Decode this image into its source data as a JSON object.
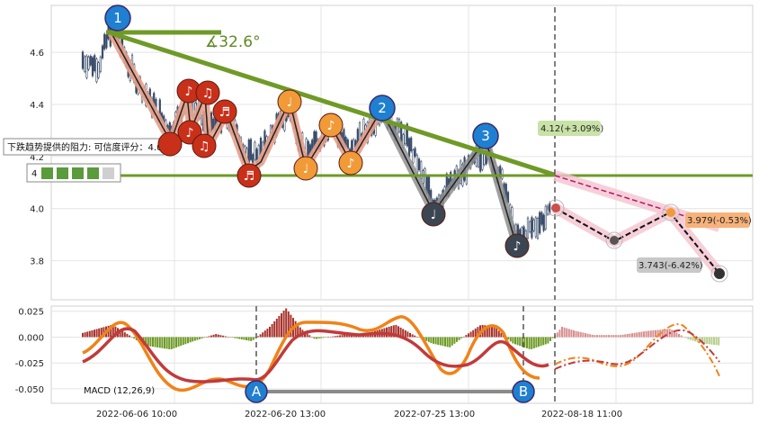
{
  "chart_data": [
    {
      "type": "line",
      "panel": "price",
      "y_ticks": [
        3.8,
        4.0,
        4.2,
        4.4,
        4.6
      ],
      "ylim": [
        3.65,
        4.78
      ],
      "x_tick_labels": [
        "2022-06-06 10:00",
        "2022-06-20 13:00",
        "2022-07-25 13:00",
        "2022-08-18 11:00"
      ],
      "grid": true,
      "trendline_angle_label": "∡32.6°",
      "resistance_label": "下跌趋势提供的阻力: 可信度评分：4.0",
      "resistance_level": 4.13,
      "forecast_labels": [
        {
          "text": "4.12(+3.09%)",
          "color": "#c9e2a7"
        },
        {
          "text": "3.979(-0.53%)",
          "color": "#f6b27a"
        },
        {
          "text": "3.743(-6.42%)",
          "color": "#c8c8c8"
        }
      ],
      "wave_labels": [
        "1",
        "2",
        "3"
      ],
      "macd_label": "MACD (12,26,9)"
    },
    {
      "type": "bar",
      "panel": "macd",
      "y_ticks": [
        0.025,
        0.0,
        -0.025,
        -0.05
      ],
      "ylim": [
        -0.064,
        0.03
      ],
      "divergence_labels": [
        "A",
        "B"
      ]
    }
  ],
  "colors": {
    "trend": "#6f9a27",
    "wave_blue": "#1f7fd1",
    "note_red": "#c8301a",
    "note_orange": "#f19a38",
    "note_dark": "#3b4652",
    "macd_orange": "#ef8319",
    "macd_red": "#c23a3a",
    "hist_red": "#a8332b",
    "hist_green": "#6e9a25"
  }
}
